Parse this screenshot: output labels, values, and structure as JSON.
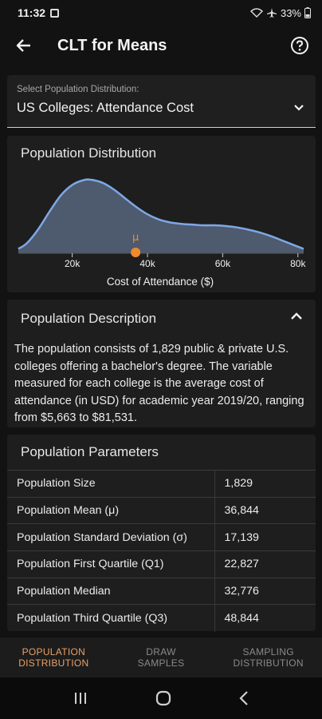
{
  "status": {
    "time": "11:32",
    "battery": "33%"
  },
  "app": {
    "title": "CLT for Means"
  },
  "selector": {
    "label": "Select Population Distribution:",
    "value": "US Colleges: Attendance Cost"
  },
  "distribution": {
    "title": "Population Distribution",
    "mu_label": "μ",
    "xlabel": "Cost of Attendance ($)",
    "ticks": [
      "20k",
      "40k",
      "60k",
      "80k"
    ],
    "colors": {
      "fill": "#4e5a6e",
      "line": "#7da8e6",
      "marker": "#f08a2a"
    }
  },
  "chart_data": {
    "type": "area",
    "title": "Population Distribution",
    "xlabel": "Cost of Attendance ($)",
    "ylabel": "",
    "xlim": [
      5663,
      81531
    ],
    "x": [
      5663,
      8000,
      11000,
      14000,
      17000,
      20000,
      23000,
      25000,
      28000,
      31000,
      34000,
      37000,
      40000,
      43000,
      46000,
      49000,
      52000,
      55000,
      58000,
      61000,
      64000,
      67000,
      70000,
      73000,
      76000,
      79000,
      81531
    ],
    "values": [
      0.06,
      0.14,
      0.33,
      0.57,
      0.79,
      0.93,
      0.995,
      1.0,
      0.96,
      0.87,
      0.75,
      0.63,
      0.53,
      0.46,
      0.42,
      0.4,
      0.39,
      0.38,
      0.38,
      0.37,
      0.35,
      0.32,
      0.28,
      0.23,
      0.17,
      0.11,
      0.06
    ],
    "ticks": [
      20000,
      40000,
      60000,
      80000
    ],
    "tick_labels": [
      "20k",
      "40k",
      "60k",
      "80k"
    ],
    "mean": 36844,
    "mean_label": "μ"
  },
  "description": {
    "title": "Population Description",
    "text": "The population consists of 1,829 public & private U.S. colleges offering a bachelor's degree. The variable measured for each college is the average cost of attendance (in USD) for academic year 2019/20, ranging from $5,663 to $81,531."
  },
  "parameters": {
    "title": "Population Parameters",
    "rows": [
      {
        "label": "Population Size",
        "value": "1,829"
      },
      {
        "label": "Population Mean (μ)",
        "value": "36,844"
      },
      {
        "label": "Population Standard Deviation (σ)",
        "value": "17,139"
      },
      {
        "label": "Population First Quartile (Q1)",
        "value": "22,827"
      },
      {
        "label": "Population Median",
        "value": "32,776"
      },
      {
        "label": "Population Third Quartile (Q3)",
        "value": "48,844"
      }
    ]
  },
  "nav": {
    "tabs": [
      {
        "line1": "POPULATION",
        "line2": "DISTRIBUTION"
      },
      {
        "line1": "DRAW",
        "line2": "SAMPLES"
      },
      {
        "line1": "SAMPLING",
        "line2": "DISTRIBUTION"
      }
    ]
  }
}
